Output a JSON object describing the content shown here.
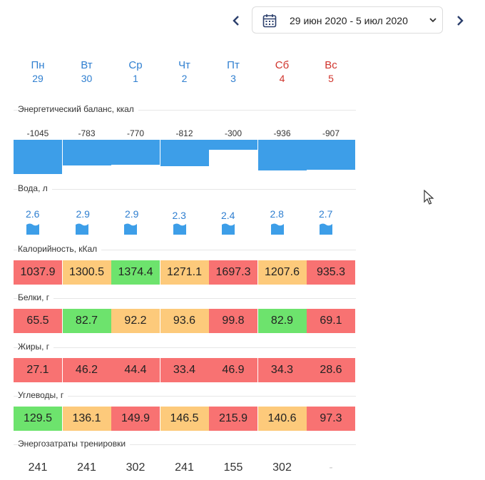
{
  "header": {
    "date_range": "29 июн 2020 - 5 июл 2020",
    "prev_icon": "chevron-left-icon",
    "next_icon": "chevron-right-icon",
    "calendar_icon": "calendar-icon",
    "dropdown_icon": "chevron-down-icon"
  },
  "days": [
    {
      "name": "Пн",
      "num": "29",
      "weekend": false
    },
    {
      "name": "Вт",
      "num": "30",
      "weekend": false
    },
    {
      "name": "Ср",
      "num": "1",
      "weekend": false
    },
    {
      "name": "Чт",
      "num": "2",
      "weekend": false
    },
    {
      "name": "Пт",
      "num": "3",
      "weekend": false
    },
    {
      "name": "Сб",
      "num": "4",
      "weekend": true
    },
    {
      "name": "Вс",
      "num": "5",
      "weekend": true
    }
  ],
  "sections": {
    "energy_balance": "Энергетический баланс, ккал",
    "water": "Вода, л",
    "calories": "Калорийность, кКал",
    "proteins": "Белки, г",
    "fats": "Жиры, г",
    "carbs": "Углеводы, г",
    "training": "Энергозатраты тренировки"
  },
  "energy_balance": [
    "-1045",
    "-783",
    "-770",
    "-812",
    "-300",
    "-936",
    "-907"
  ],
  "water": [
    "2.6",
    "2.9",
    "2.9",
    "2.3",
    "2.4",
    "2.8",
    "2.7"
  ],
  "calories": [
    {
      "value": "1037.9",
      "status": "red"
    },
    {
      "value": "1300.5",
      "status": "yellow"
    },
    {
      "value": "1374.4",
      "status": "green"
    },
    {
      "value": "1271.1",
      "status": "yellow"
    },
    {
      "value": "1697.3",
      "status": "red"
    },
    {
      "value": "1207.6",
      "status": "yellow"
    },
    {
      "value": "935.3",
      "status": "red"
    }
  ],
  "proteins": [
    {
      "value": "65.5",
      "status": "red"
    },
    {
      "value": "82.7",
      "status": "green"
    },
    {
      "value": "92.2",
      "status": "yellow"
    },
    {
      "value": "93.6",
      "status": "yellow"
    },
    {
      "value": "99.8",
      "status": "red"
    },
    {
      "value": "82.9",
      "status": "green"
    },
    {
      "value": "69.1",
      "status": "red"
    }
  ],
  "fats": [
    {
      "value": "27.1",
      "status": "red"
    },
    {
      "value": "46.2",
      "status": "red"
    },
    {
      "value": "44.4",
      "status": "red"
    },
    {
      "value": "33.4",
      "status": "red"
    },
    {
      "value": "46.9",
      "status": "red"
    },
    {
      "value": "34.3",
      "status": "red"
    },
    {
      "value": "28.6",
      "status": "red"
    }
  ],
  "carbs": [
    {
      "value": "129.5",
      "status": "green"
    },
    {
      "value": "136.1",
      "status": "yellow"
    },
    {
      "value": "149.9",
      "status": "red"
    },
    {
      "value": "146.5",
      "status": "yellow"
    },
    {
      "value": "215.9",
      "status": "red"
    },
    {
      "value": "140.6",
      "status": "yellow"
    },
    {
      "value": "97.3",
      "status": "red"
    }
  ],
  "training": [
    "241",
    "241",
    "302",
    "241",
    "155",
    "302",
    "-"
  ],
  "colors": {
    "accent_blue": "#2f7fd0",
    "weekend_red": "#d0342c",
    "bar_blue": "#3d9ee8",
    "status_red": "#f87272",
    "status_yellow": "#fdca7b",
    "status_green": "#6de36d"
  }
}
